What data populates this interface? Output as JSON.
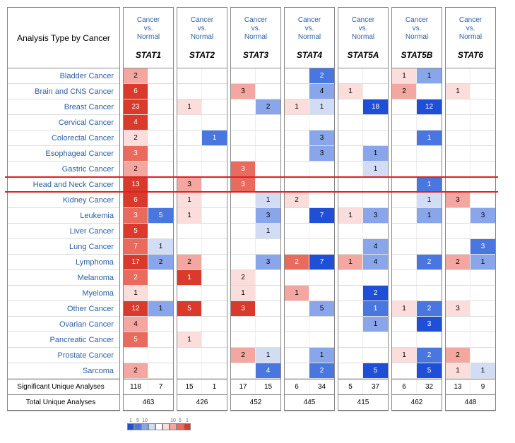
{
  "header_label": "Analysis Type by Cancer",
  "sub_header": "Cancer vs. Normal",
  "genes": [
    "STAT1",
    "STAT2",
    "STAT3",
    "STAT4",
    "STAT5A",
    "STAT5B",
    "STAT6"
  ],
  "cancers": [
    "Bladder Cancer",
    "Brain and CNS Cancer",
    "Breast Cancer",
    "Cervical Cancer",
    "Colorectal Cancer",
    "Esophageal Cancer",
    "Gastric Cancer",
    "Head and Neck Cancer",
    "Kidney Cancer",
    "Leukemia",
    "Liver Cancer",
    "Lung Cancer",
    "Lymphoma",
    "Melanoma",
    "Myeloma",
    "Other Cancer",
    "Ovarian Cancer",
    "Pancreatic Cancer",
    "Prostate Cancer",
    "Sarcoma"
  ],
  "highlight_row": 7,
  "colors": {
    "r4": "#d93a2b",
    "r3": "#e96b5e",
    "r2": "#f4a7a0",
    "r1": "#fbdedb",
    "b4": "#1f4fd6",
    "b3": "#4a76e0",
    "b2": "#8aa6ea",
    "b1": "#d2ddf5",
    "w": "#ffffff"
  },
  "grid": [
    [
      [
        "2",
        "r2"
      ],
      [
        "",
        ""
      ],
      [
        "",
        ""
      ],
      [
        "",
        ""
      ],
      [
        "",
        ""
      ],
      [
        "",
        ""
      ],
      [
        "",
        ""
      ],
      [
        "2",
        "b3"
      ],
      [
        "",
        ""
      ],
      [
        "",
        ""
      ],
      [
        "1",
        "r1"
      ],
      [
        "1",
        "b2"
      ],
      [
        "",
        ""
      ],
      [
        "",
        ""
      ]
    ],
    [
      [
        "6",
        "r4"
      ],
      [
        "",
        ""
      ],
      [
        "",
        ""
      ],
      [
        "",
        ""
      ],
      [
        "3",
        "r2"
      ],
      [
        "",
        ""
      ],
      [
        "",
        ""
      ],
      [
        "4",
        "b2"
      ],
      [
        "1",
        "r1"
      ],
      [
        "",
        ""
      ],
      [
        "2",
        "r2"
      ],
      [
        "",
        ""
      ],
      [
        "1",
        "r1"
      ],
      [
        "",
        ""
      ]
    ],
    [
      [
        "23",
        "r4"
      ],
      [
        "",
        ""
      ],
      [
        "1",
        "r1"
      ],
      [
        "",
        ""
      ],
      [
        "",
        ""
      ],
      [
        "2",
        "b2"
      ],
      [
        "1",
        "r1"
      ],
      [
        "1",
        "b1"
      ],
      [
        "",
        ""
      ],
      [
        "18",
        "b4"
      ],
      [
        "",
        ""
      ],
      [
        "12",
        "b4"
      ],
      [
        "",
        ""
      ],
      [
        "",
        ""
      ]
    ],
    [
      [
        "4",
        "r4"
      ],
      [
        "",
        ""
      ],
      [
        "",
        ""
      ],
      [
        "",
        ""
      ],
      [
        "",
        ""
      ],
      [
        "",
        ""
      ],
      [
        "",
        ""
      ],
      [
        "",
        ""
      ],
      [
        "",
        ""
      ],
      [
        "",
        ""
      ],
      [
        "",
        ""
      ],
      [
        "",
        ""
      ],
      [
        "",
        ""
      ],
      [
        "",
        ""
      ]
    ],
    [
      [
        "2",
        "r1"
      ],
      [
        "",
        ""
      ],
      [
        "",
        ""
      ],
      [
        "1",
        "b3"
      ],
      [
        "",
        ""
      ],
      [
        "",
        ""
      ],
      [
        "",
        ""
      ],
      [
        "3",
        "b2"
      ],
      [
        "",
        ""
      ],
      [
        "",
        ""
      ],
      [
        "",
        ""
      ],
      [
        "1",
        "b3"
      ],
      [
        "",
        ""
      ],
      [
        "",
        ""
      ]
    ],
    [
      [
        "3",
        "r3"
      ],
      [
        "",
        ""
      ],
      [
        "",
        ""
      ],
      [
        "",
        ""
      ],
      [
        "",
        ""
      ],
      [
        "",
        ""
      ],
      [
        "",
        ""
      ],
      [
        "3",
        "b2"
      ],
      [
        "",
        ""
      ],
      [
        "1",
        "b2"
      ],
      [
        "",
        ""
      ],
      [
        "",
        ""
      ],
      [
        "",
        ""
      ],
      [
        "",
        ""
      ]
    ],
    [
      [
        "2",
        "r2"
      ],
      [
        "",
        ""
      ],
      [
        "",
        ""
      ],
      [
        "",
        ""
      ],
      [
        "3",
        "r3"
      ],
      [
        "",
        ""
      ],
      [
        "",
        ""
      ],
      [
        "",
        ""
      ],
      [
        "",
        ""
      ],
      [
        "1",
        "b1"
      ],
      [
        "",
        ""
      ],
      [
        "",
        ""
      ],
      [
        "",
        ""
      ],
      [
        "",
        ""
      ]
    ],
    [
      [
        "13",
        "r4"
      ],
      [
        "",
        ""
      ],
      [
        "3",
        "r2"
      ],
      [
        "",
        ""
      ],
      [
        "3",
        "r3"
      ],
      [
        "",
        ""
      ],
      [
        "",
        ""
      ],
      [
        "",
        ""
      ],
      [
        "",
        ""
      ],
      [
        "",
        ""
      ],
      [
        "",
        ""
      ],
      [
        "1",
        "b3"
      ],
      [
        "",
        ""
      ],
      [
        "",
        ""
      ]
    ],
    [
      [
        "6",
        "r4"
      ],
      [
        "",
        ""
      ],
      [
        "1",
        "r1"
      ],
      [
        "",
        ""
      ],
      [
        "",
        ""
      ],
      [
        "1",
        "b1"
      ],
      [
        "2",
        "r1"
      ],
      [
        "",
        ""
      ],
      [
        "",
        ""
      ],
      [
        "",
        ""
      ],
      [
        "",
        ""
      ],
      [
        "1",
        "b1"
      ],
      [
        "3",
        "r2"
      ],
      [
        "",
        ""
      ]
    ],
    [
      [
        "3",
        "r3"
      ],
      [
        "5",
        "b3"
      ],
      [
        "1",
        "r1"
      ],
      [
        "",
        ""
      ],
      [
        "",
        ""
      ],
      [
        "3",
        "b2"
      ],
      [
        "",
        ""
      ],
      [
        "7",
        "b4"
      ],
      [
        "1",
        "r1"
      ],
      [
        "3",
        "b2"
      ],
      [
        "",
        ""
      ],
      [
        "1",
        "b2"
      ],
      [
        "",
        ""
      ],
      [
        "3",
        "b2"
      ]
    ],
    [
      [
        "5",
        "r4"
      ],
      [
        "",
        ""
      ],
      [
        "",
        ""
      ],
      [
        "",
        ""
      ],
      [
        "",
        ""
      ],
      [
        "1",
        "b1"
      ],
      [
        "",
        ""
      ],
      [
        "",
        ""
      ],
      [
        "",
        ""
      ],
      [
        "",
        ""
      ],
      [
        "",
        ""
      ],
      [
        "",
        ""
      ],
      [
        "",
        ""
      ],
      [
        "",
        ""
      ]
    ],
    [
      [
        "7",
        "r3"
      ],
      [
        "1",
        "b1"
      ],
      [
        "",
        ""
      ],
      [
        "",
        ""
      ],
      [
        "",
        ""
      ],
      [
        "",
        ""
      ],
      [
        "",
        ""
      ],
      [
        "",
        ""
      ],
      [
        "",
        ""
      ],
      [
        "4",
        "b2"
      ],
      [
        "",
        ""
      ],
      [
        "",
        ""
      ],
      [
        "",
        ""
      ],
      [
        "3",
        "b3"
      ]
    ],
    [
      [
        "17",
        "r4"
      ],
      [
        "2",
        "b2"
      ],
      [
        "2",
        "r2"
      ],
      [
        "",
        ""
      ],
      [
        "",
        ""
      ],
      [
        "3",
        "b2"
      ],
      [
        "2",
        "r3"
      ],
      [
        "7",
        "b4"
      ],
      [
        "1",
        "r2"
      ],
      [
        "4",
        "b2"
      ],
      [
        "",
        ""
      ],
      [
        "2",
        "b3"
      ],
      [
        "2",
        "r2"
      ],
      [
        "1",
        "b2"
      ]
    ],
    [
      [
        "2",
        "r3"
      ],
      [
        "",
        ""
      ],
      [
        "1",
        "r4"
      ],
      [
        "",
        ""
      ],
      [
        "2",
        "r1"
      ],
      [
        "",
        ""
      ],
      [
        "",
        ""
      ],
      [
        "",
        ""
      ],
      [
        "",
        ""
      ],
      [
        "",
        ""
      ],
      [
        "",
        ""
      ],
      [
        "",
        ""
      ],
      [
        "",
        ""
      ],
      [
        "",
        ""
      ]
    ],
    [
      [
        "1",
        "r1"
      ],
      [
        "",
        ""
      ],
      [
        "",
        ""
      ],
      [
        "",
        ""
      ],
      [
        "1",
        "r1"
      ],
      [
        "",
        ""
      ],
      [
        "1",
        "r2"
      ],
      [
        "",
        ""
      ],
      [
        "",
        ""
      ],
      [
        "2",
        "b4"
      ],
      [
        "",
        ""
      ],
      [
        "",
        ""
      ],
      [
        "",
        ""
      ],
      [
        "",
        ""
      ]
    ],
    [
      [
        "12",
        "r4"
      ],
      [
        "1",
        "b2"
      ],
      [
        "5",
        "r4"
      ],
      [
        "",
        ""
      ],
      [
        "3",
        "r4"
      ],
      [
        "",
        ""
      ],
      [
        "",
        ""
      ],
      [
        "5",
        "b2"
      ],
      [
        "",
        ""
      ],
      [
        "1",
        "b3"
      ],
      [
        "1",
        "r1"
      ],
      [
        "2",
        "b3"
      ],
      [
        "3",
        "r1"
      ],
      [
        "",
        ""
      ]
    ],
    [
      [
        "4",
        "r2"
      ],
      [
        "",
        ""
      ],
      [
        "",
        ""
      ],
      [
        "",
        ""
      ],
      [
        "",
        ""
      ],
      [
        "",
        ""
      ],
      [
        "",
        ""
      ],
      [
        "",
        ""
      ],
      [
        "",
        ""
      ],
      [
        "1",
        "b2"
      ],
      [
        "",
        ""
      ],
      [
        "3",
        "b4"
      ],
      [
        "",
        ""
      ],
      [
        "",
        ""
      ]
    ],
    [
      [
        "5",
        "r3"
      ],
      [
        "",
        ""
      ],
      [
        "1",
        "r1"
      ],
      [
        "",
        ""
      ],
      [
        "",
        ""
      ],
      [
        "",
        ""
      ],
      [
        "",
        ""
      ],
      [
        "",
        ""
      ],
      [
        "",
        ""
      ],
      [
        "",
        ""
      ],
      [
        "",
        ""
      ],
      [
        "",
        ""
      ],
      [
        "",
        ""
      ],
      [
        "",
        ""
      ]
    ],
    [
      [
        "",
        ""
      ],
      [
        "",
        ""
      ],
      [
        "",
        ""
      ],
      [
        "",
        ""
      ],
      [
        "2",
        "r2"
      ],
      [
        "1",
        "b1"
      ],
      [
        "",
        ""
      ],
      [
        "1",
        "b2"
      ],
      [
        "",
        ""
      ],
      [
        "",
        ""
      ],
      [
        "1",
        "r1"
      ],
      [
        "2",
        "b3"
      ],
      [
        "2",
        "r2"
      ],
      [
        "",
        ""
      ]
    ],
    [
      [
        "2",
        "r2"
      ],
      [
        "",
        ""
      ],
      [
        "",
        ""
      ],
      [
        "",
        ""
      ],
      [
        "",
        ""
      ],
      [
        "4",
        "b3"
      ],
      [
        "",
        ""
      ],
      [
        "2",
        "b3"
      ],
      [
        "",
        ""
      ],
      [
        "5",
        "b4"
      ],
      [
        "",
        ""
      ],
      [
        "5",
        "b4"
      ],
      [
        "1",
        "r1"
      ],
      [
        "1",
        "b1"
      ]
    ]
  ],
  "sig_label": "Significant Unique Analyses",
  "tot_label": "Total Unique Analyses",
  "sig": [
    [
      "118",
      "7"
    ],
    [
      "15",
      "1"
    ],
    [
      "17",
      "15"
    ],
    [
      "6",
      "34"
    ],
    [
      "5",
      "37"
    ],
    [
      "6",
      "32"
    ],
    [
      "13",
      "9"
    ]
  ],
  "tot": [
    "463",
    "426",
    "452",
    "445",
    "415",
    "462",
    "448"
  ],
  "legend_nums": [
    "1",
    "5",
    "10",
    "10",
    "5",
    "1"
  ],
  "legend_colors": [
    "b4",
    "b3",
    "b2",
    "b1",
    "w",
    "r1",
    "r2",
    "r3",
    "r4"
  ]
}
